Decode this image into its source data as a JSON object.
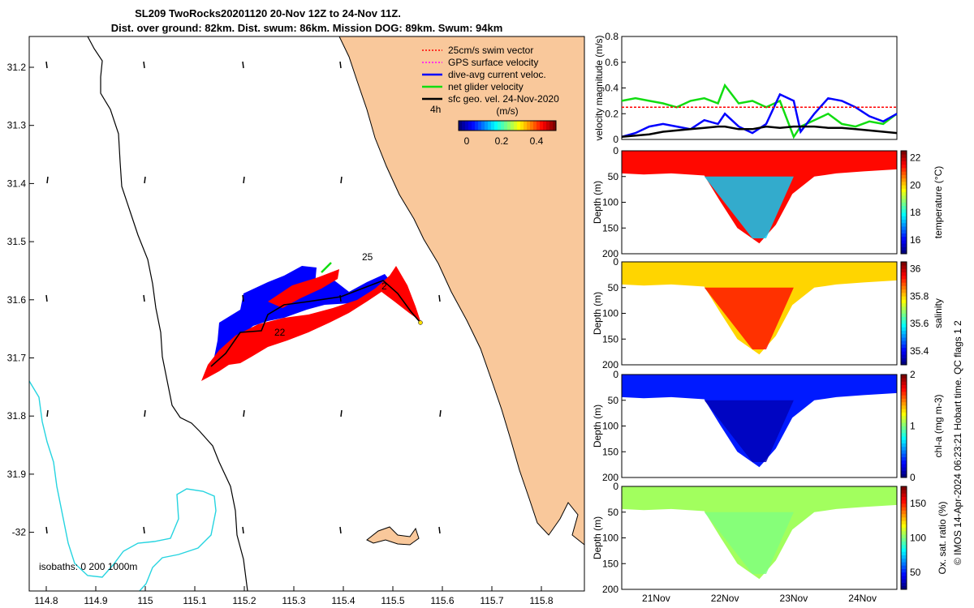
{
  "title_line1": "SL209 TwoRocks20201120 20-Nov 12Z to 24-Nov 11Z.",
  "title_line2": "Dist. over ground: 82km. Dist. swum: 86km. Mission DOG: 89km. Swum: 94km",
  "credit": "© IMOS 14-Apr-2024 06:23:21 Hobart time. QC flags 1  2",
  "colors": {
    "land": "#f9c89b",
    "coast": "#000000",
    "isobath": "#26d4e0",
    "swim_vector": "#ff0000",
    "gps_velocity": "#ff00ff",
    "current": "#0000ff",
    "net_velocity": "#11dd11",
    "geo_velocity": "#000000"
  },
  "map": {
    "x_ticks": [
      "114.8",
      "114.9",
      "115",
      "115.1",
      "115.2",
      "115.3",
      "115.4",
      "115.5",
      "115.6",
      "115.7",
      "115.8"
    ],
    "y_ticks": [
      "31.2",
      "31.3",
      "31.4",
      "31.5",
      "31.6",
      "31.7",
      "31.8",
      "31.9",
      "-32"
    ],
    "legend": [
      {
        "label": "25cm/s swim vector",
        "color": "#ff0000",
        "dashed": true
      },
      {
        "label": "GPS surface velocity",
        "color": "#ff00ff",
        "dashed": true
      },
      {
        "label": "dive-avg current veloc.",
        "color": "#0000ff",
        "dashed": false
      },
      {
        "label": "net glider velocity",
        "color": "#11dd11",
        "dashed": false
      },
      {
        "label": "sfc geo. vel. 24-Nov-2020",
        "color": "#000000",
        "dashed": false
      }
    ],
    "scale_label": "4h",
    "colorbar_unit": "(m/s)",
    "colorbar_ticks": [
      "0",
      "0.2",
      "0.4"
    ],
    "day_labels": [
      "25",
      "22",
      "2"
    ],
    "isobath_label": "isobaths: 0   200  1000m"
  },
  "chart_data": [
    {
      "type": "line",
      "ylabel": "velocity magnitude (m/s)",
      "ylim": [
        0,
        0.8
      ],
      "y_ticks": [
        "0",
        "0.2",
        "0.4",
        "0.6",
        "0.8"
      ],
      "x": [
        20.5,
        20.7,
        20.9,
        21.1,
        21.3,
        21.5,
        21.7,
        21.9,
        22.0,
        22.2,
        22.4,
        22.6,
        22.8,
        23.0,
        23.1,
        23.3,
        23.5,
        23.7,
        23.9,
        24.1,
        24.3,
        24.5
      ],
      "series": [
        {
          "name": "net glider velocity",
          "color": "#11dd11",
          "values": [
            0.3,
            0.32,
            0.3,
            0.28,
            0.25,
            0.3,
            0.32,
            0.28,
            0.42,
            0.28,
            0.3,
            0.25,
            0.3,
            0.02,
            0.1,
            0.15,
            0.2,
            0.12,
            0.1,
            0.14,
            0.12,
            0.2
          ]
        },
        {
          "name": "dive-avg current veloc.",
          "color": "#0000ff",
          "values": [
            0.02,
            0.05,
            0.1,
            0.12,
            0.1,
            0.08,
            0.15,
            0.12,
            0.2,
            0.1,
            0.05,
            0.12,
            0.35,
            0.3,
            0.06,
            0.2,
            0.32,
            0.3,
            0.25,
            0.18,
            0.14,
            0.2
          ]
        },
        {
          "name": "sfc geo. vel. 24-Nov-2020",
          "color": "#000000",
          "values": [
            0.02,
            0.03,
            0.04,
            0.06,
            0.07,
            0.08,
            0.09,
            0.1,
            0.1,
            0.08,
            0.08,
            0.1,
            0.09,
            0.1,
            0.1,
            0.1,
            0.09,
            0.09,
            0.08,
            0.07,
            0.06,
            0.05
          ]
        },
        {
          "name": "25cm/s swim vector",
          "color": "#ff0000",
          "values": [
            0.25,
            0.25,
            0.25,
            0.25,
            0.25,
            0.25,
            0.25,
            0.25,
            0.25,
            0.25,
            0.25,
            0.25,
            0.25,
            0.25,
            0.25,
            0.25,
            0.25,
            0.25,
            0.25,
            0.25,
            0.25,
            0.25
          ]
        }
      ]
    },
    {
      "type": "heatmap",
      "ylabel": "Depth (m)",
      "y_ticks": [
        "0",
        "50",
        "100",
        "150",
        "200"
      ],
      "colorbar_label": "temperature (°C)",
      "colorbar_ticks": [
        "16",
        "18",
        "20",
        "22"
      ],
      "colorbar_range": [
        15,
        22.5
      ],
      "surface_value": 21.5,
      "deep_value": 17.5
    },
    {
      "type": "heatmap",
      "ylabel": "Depth (m)",
      "y_ticks": [
        "0",
        "50",
        "100",
        "150",
        "200"
      ],
      "colorbar_label": "salinity",
      "colorbar_ticks": [
        "35.4",
        "35.6",
        "35.8",
        "36"
      ],
      "colorbar_range": [
        35.3,
        36.05
      ],
      "surface_value": 35.8,
      "deep_value": 35.95
    },
    {
      "type": "heatmap",
      "ylabel": "Depth (m)",
      "y_ticks": [
        "0",
        "50",
        "100",
        "150",
        "200"
      ],
      "colorbar_label": "chl-a (mg m-3)",
      "colorbar_ticks": [
        "0",
        "1",
        "2"
      ],
      "colorbar_range": [
        0,
        2
      ],
      "surface_value": 0.3,
      "deep_value": 0.1
    },
    {
      "type": "heatmap",
      "ylabel": "Depth (m)",
      "y_ticks": [
        "0",
        "50",
        "100",
        "150",
        "200"
      ],
      "colorbar_label": "Ox. sat. ratio (%)",
      "colorbar_ticks": [
        "50",
        "100",
        "150"
      ],
      "colorbar_range": [
        25,
        175
      ],
      "surface_value": 105,
      "deep_value": 100
    }
  ],
  "time_axis": [
    "21Nov",
    "22Nov",
    "23Nov",
    "24Nov"
  ]
}
